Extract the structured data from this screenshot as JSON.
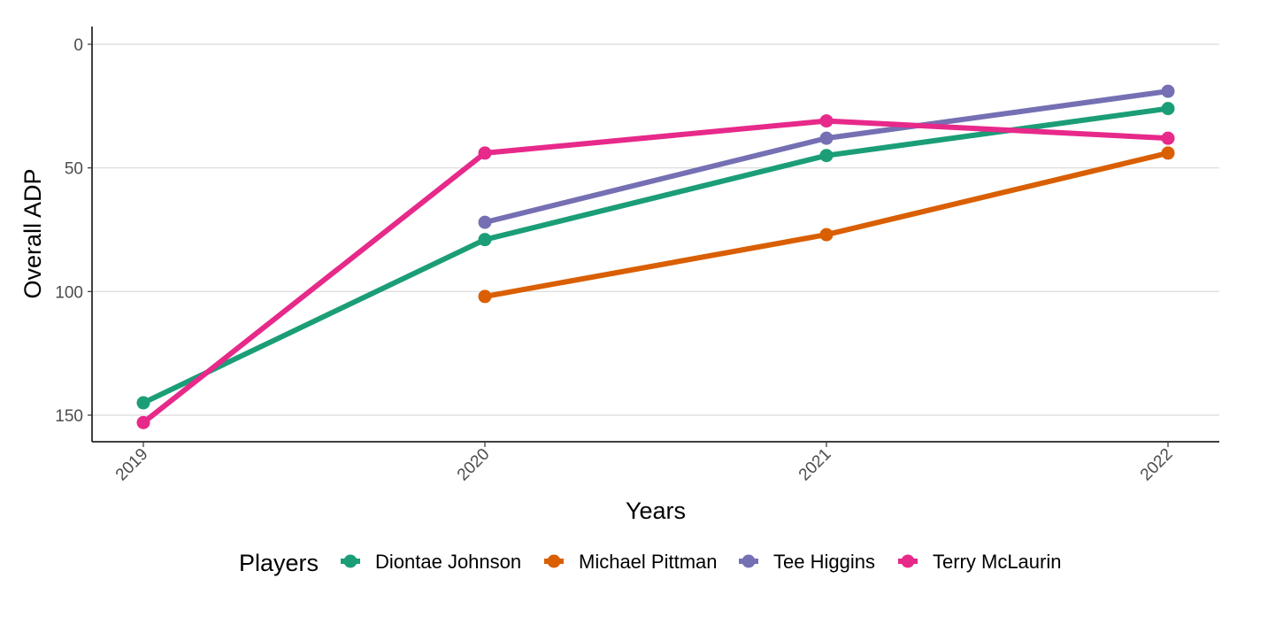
{
  "chart_data": {
    "type": "line",
    "title": "",
    "xlabel": "Years",
    "ylabel": "Overall ADP",
    "x": [
      "2019",
      "2020",
      "2021",
      "2022"
    ],
    "y_ticks": [
      "0",
      "50",
      "100",
      "150"
    ],
    "ylim": [
      0,
      160
    ],
    "y_reversed": true,
    "grid": "horizontal",
    "legend": {
      "title": "Players",
      "position": "bottom"
    },
    "series": [
      {
        "name": "Diontae Johnson",
        "color": "#1b9e77",
        "values": [
          145,
          79,
          45,
          26
        ]
      },
      {
        "name": "Michael Pittman",
        "color": "#d95f02",
        "values": [
          null,
          102,
          77,
          44
        ]
      },
      {
        "name": "Tee Higgins",
        "color": "#7570b3",
        "values": [
          null,
          72,
          38,
          19
        ]
      },
      {
        "name": "Terry McLaurin",
        "color": "#e7298a",
        "values": [
          153,
          44,
          31,
          38
        ]
      }
    ]
  }
}
